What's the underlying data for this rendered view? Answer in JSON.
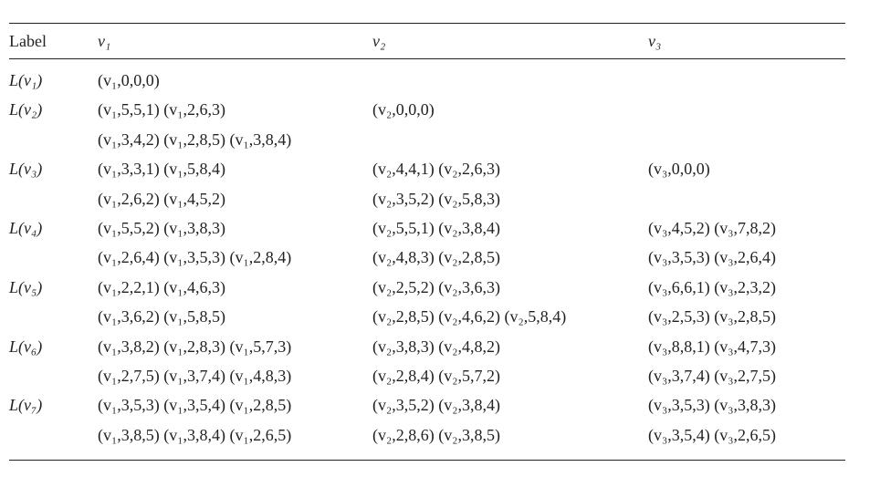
{
  "table": {
    "headers": [
      "Label",
      "v₁",
      "v₂",
      "v₃"
    ],
    "rows": [
      {
        "label": "L(v₁)",
        "v1": "(v₁,0,0,0)",
        "v2": "",
        "v3": ""
      },
      {
        "label": "L(v₂)",
        "v1": "(v₁,5,5,1) (v₁,2,6,3)",
        "v2": "(v₂,0,0,0)",
        "v3": ""
      },
      {
        "label": "",
        "v1": "(v₁,3,4,2) (v₁,2,8,5) (v₁,3,8,4)",
        "v2": "",
        "v3": ""
      },
      {
        "label": "L(v₃)",
        "v1": "(v₁,3,3,1) (v₁,5,8,4)",
        "v2": "(v₂,4,4,1) (v₂,2,6,3)",
        "v3": "(v₃,0,0,0)"
      },
      {
        "label": "",
        "v1": "(v₁,2,6,2) (v₁,4,5,2)",
        "v2": "(v₂,3,5,2) (v₂,5,8,3)",
        "v3": ""
      },
      {
        "label": "L(v₄)",
        "v1": "(v₁,5,5,2) (v₁,3,8,3)",
        "v2": "(v₂,5,5,1) (v₂,3,8,4)",
        "v3": "(v₃,4,5,2) (v₃,7,8,2)"
      },
      {
        "label": "",
        "v1": "(v₁,2,6,4) (v₁,3,5,3) (v₁,2,8,4)",
        "v2": "(v₂,4,8,3) (v₂,2,8,5)",
        "v3": "(v₃,3,5,3) (v₃,2,6,4)"
      },
      {
        "label": "L(v₅)",
        "v1": "(v₁,2,2,1) (v₁,4,6,3)",
        "v2": "(v₂,2,5,2) (v₂,3,6,3)",
        "v3": "(v₃,6,6,1) (v₃,2,3,2)"
      },
      {
        "label": "",
        "v1": "(v₁,3,6,2) (v₁,5,8,5)",
        "v2": "(v₂,2,8,5) (v₂,4,6,2) (v₂,5,8,4)",
        "v3": "(v₃,2,5,3) (v₃,2,8,5)"
      },
      {
        "label": "L(v₆)",
        "v1": "(v₁,3,8,2) (v₁,2,8,3) (v₁,5,7,3)",
        "v2": "(v₂,3,8,3) (v₂,4,8,2)",
        "v3": "(v₃,8,8,1) (v₃,4,7,3)"
      },
      {
        "label": "",
        "v1": "(v₁,2,7,5) (v₁,3,7,4) (v₁,4,8,3)",
        "v2": "(v₂,2,8,4) (v₂,5,7,2)",
        "v3": "(v₃,3,7,4) (v₃,2,7,5)"
      },
      {
        "label": "L(v₇)",
        "v1": "(v₁,3,5,3) (v₁,3,5,4) (v₁,2,8,5)",
        "v2": "(v₂,3,5,2) (v₂,3,8,4)",
        "v3": "(v₃,3,5,3) (v₃,3,8,3)"
      },
      {
        "label": "",
        "v1": "(v₁,3,8,5) (v₁,3,8,4) (v₁,2,6,5)",
        "v2": "(v₂,2,8,6) (v₂,3,8,5)",
        "v3": "(v₃,3,5,4) (v₃,2,6,5)"
      }
    ]
  }
}
